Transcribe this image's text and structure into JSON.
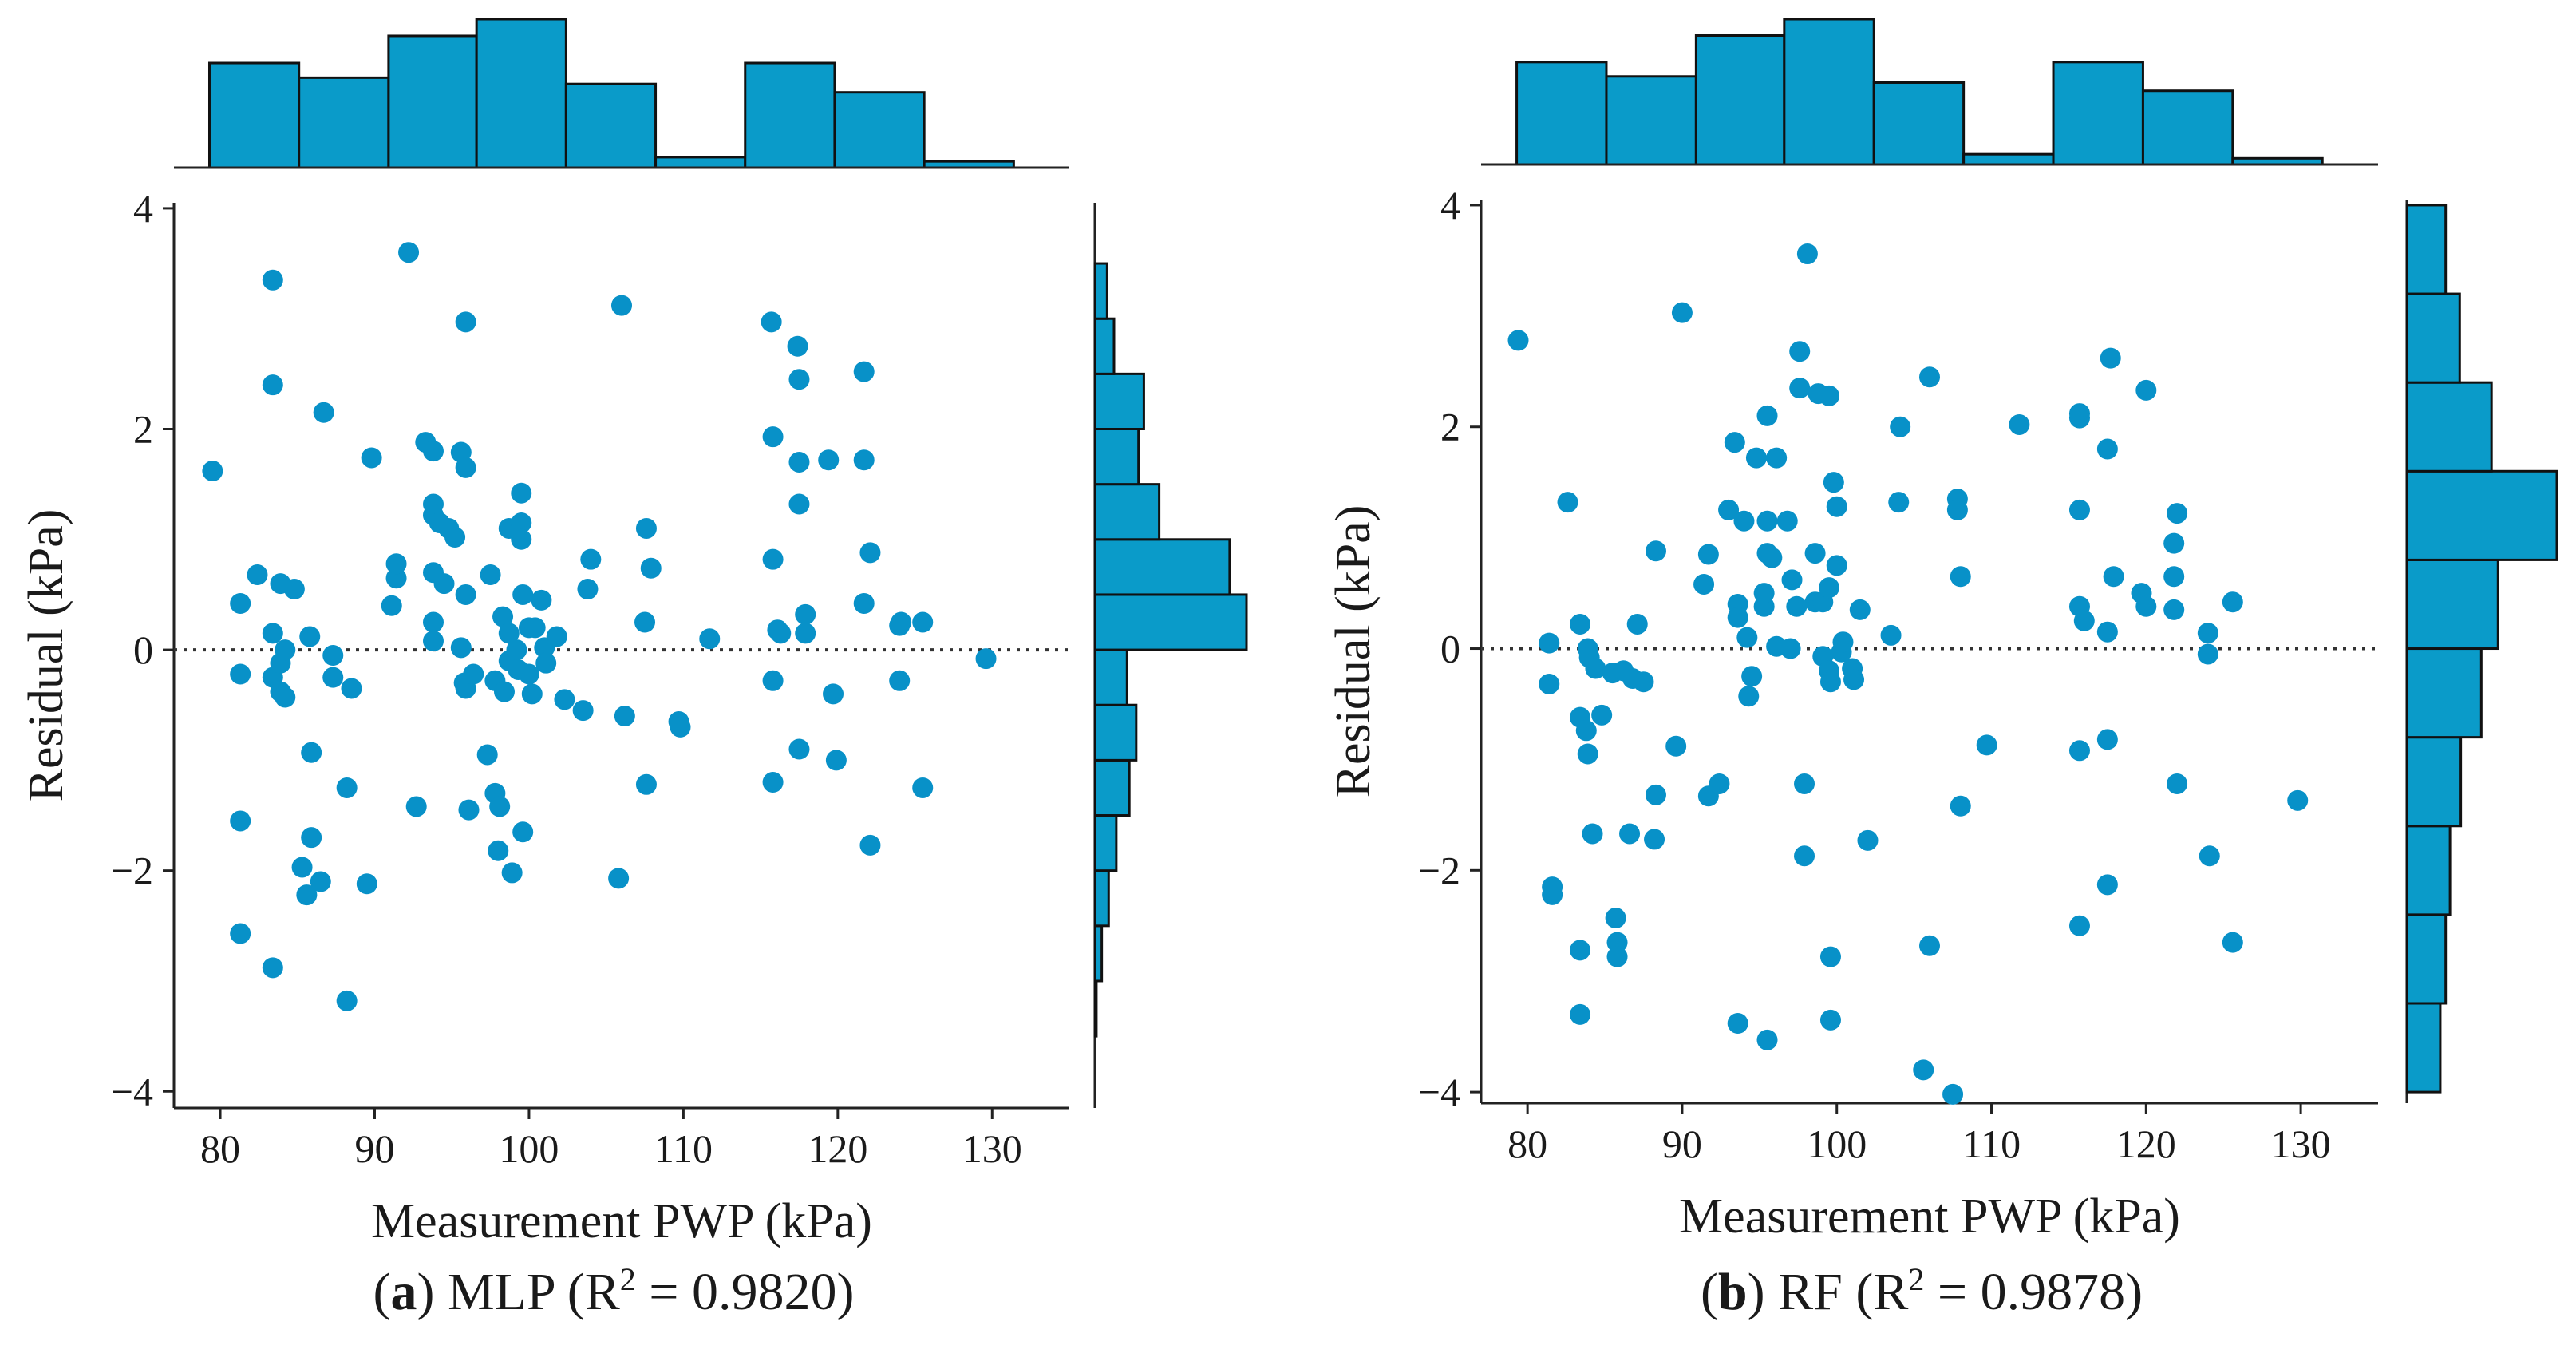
{
  "chart_data": [
    {
      "type": "scatter",
      "caption": {
        "letter": "a",
        "text": " MLP (R",
        "sup": "2",
        "tail": " = 0.9820)"
      },
      "xlabel": "Measurement PWP (kPa)",
      "ylabel": "Residual (kPa)",
      "xlim": [
        77,
        135
      ],
      "ylim": [
        -4.15,
        4.05
      ],
      "xticks": [
        "80",
        "90",
        "100",
        "110",
        "120",
        "130"
      ],
      "yticks": [
        "4",
        "2",
        "0",
        "−2",
        "−4"
      ],
      "xtick_values": [
        80,
        90,
        100,
        110,
        120,
        130
      ],
      "ytick_values": [
        4,
        2,
        0,
        -2,
        -4
      ],
      "reference_line_y": 0,
      "marker_color": "#0891c8",
      "hist_color": "#0a9bc9",
      "points": [
        [
          79.5,
          1.62
        ],
        [
          81.3,
          0.42
        ],
        [
          81.3,
          -0.22
        ],
        [
          81.3,
          -1.55
        ],
        [
          81.3,
          -2.57
        ],
        [
          82.4,
          0.68
        ],
        [
          83.4,
          3.35
        ],
        [
          83.4,
          2.4
        ],
        [
          83.4,
          0.15
        ],
        [
          83.4,
          -0.25
        ],
        [
          83.4,
          -2.88
        ],
        [
          83.9,
          0.6
        ],
        [
          83.9,
          -0.12
        ],
        [
          83.9,
          -0.38
        ],
        [
          84.2,
          -0.43
        ],
        [
          84.2,
          0.0
        ],
        [
          84.8,
          0.55
        ],
        [
          85.3,
          -1.97
        ],
        [
          85.6,
          -2.22
        ],
        [
          85.8,
          0.12
        ],
        [
          85.9,
          -0.93
        ],
        [
          85.9,
          -1.7
        ],
        [
          86.5,
          -2.1
        ],
        [
          86.7,
          2.15
        ],
        [
          87.3,
          -0.05
        ],
        [
          87.3,
          -0.25
        ],
        [
          88.2,
          -1.25
        ],
        [
          88.2,
          -3.18
        ],
        [
          88.5,
          -0.35
        ],
        [
          89.5,
          -2.12
        ],
        [
          89.8,
          1.74
        ],
        [
          91.1,
          0.4
        ],
        [
          91.4,
          0.65
        ],
        [
          91.4,
          0.78
        ],
        [
          92.2,
          3.6
        ],
        [
          92.7,
          -1.42
        ],
        [
          93.3,
          1.88
        ],
        [
          93.8,
          1.8
        ],
        [
          93.8,
          1.32
        ],
        [
          93.8,
          1.22
        ],
        [
          93.8,
          0.7
        ],
        [
          93.8,
          0.25
        ],
        [
          93.8,
          0.08
        ],
        [
          94.2,
          1.15
        ],
        [
          94.5,
          0.6
        ],
        [
          94.8,
          1.1
        ],
        [
          95.2,
          1.02
        ],
        [
          95.6,
          1.79
        ],
        [
          95.6,
          0.02
        ],
        [
          95.8,
          -0.3
        ],
        [
          95.9,
          2.97
        ],
        [
          95.9,
          1.65
        ],
        [
          95.9,
          0.5
        ],
        [
          95.9,
          -0.35
        ],
        [
          96.1,
          -1.45
        ],
        [
          96.4,
          -0.22
        ],
        [
          97.3,
          -0.95
        ],
        [
          97.5,
          0.68
        ],
        [
          97.8,
          -0.28
        ],
        [
          97.8,
          -1.3
        ],
        [
          98.0,
          -1.82
        ],
        [
          98.1,
          -1.42
        ],
        [
          98.3,
          0.3
        ],
        [
          98.4,
          -0.38
        ],
        [
          98.7,
          1.1
        ],
        [
          98.7,
          0.15
        ],
        [
          98.7,
          -0.1
        ],
        [
          98.9,
          -2.02
        ],
        [
          99.2,
          0.0
        ],
        [
          99.3,
          -0.18
        ],
        [
          99.5,
          1.42
        ],
        [
          99.5,
          1.15
        ],
        [
          99.5,
          1.0
        ],
        [
          99.6,
          0.5
        ],
        [
          99.6,
          -1.65
        ],
        [
          100.0,
          0.2
        ],
        [
          100.0,
          -0.22
        ],
        [
          100.2,
          -0.4
        ],
        [
          100.4,
          0.2
        ],
        [
          100.8,
          0.45
        ],
        [
          101.0,
          0.02
        ],
        [
          101.1,
          -0.12
        ],
        [
          101.8,
          0.12
        ],
        [
          102.3,
          -0.45
        ],
        [
          103.5,
          -0.55
        ],
        [
          103.8,
          0.55
        ],
        [
          104.0,
          0.82
        ],
        [
          105.8,
          -2.07
        ],
        [
          106.0,
          3.12
        ],
        [
          106.2,
          -0.6
        ],
        [
          107.5,
          0.25
        ],
        [
          107.6,
          1.1
        ],
        [
          107.6,
          -1.22
        ],
        [
          107.9,
          0.74
        ],
        [
          109.7,
          -0.65
        ],
        [
          109.8,
          -0.7
        ],
        [
          111.7,
          0.1
        ],
        [
          115.7,
          2.97
        ],
        [
          115.8,
          1.93
        ],
        [
          115.8,
          0.82
        ],
        [
          115.8,
          -0.28
        ],
        [
          115.8,
          -1.2
        ],
        [
          116.1,
          0.18
        ],
        [
          116.3,
          0.15
        ],
        [
          117.4,
          2.75
        ],
        [
          117.5,
          2.45
        ],
        [
          117.5,
          1.7
        ],
        [
          117.5,
          1.32
        ],
        [
          117.5,
          -0.9
        ],
        [
          117.9,
          0.32
        ],
        [
          117.9,
          0.15
        ],
        [
          119.4,
          1.72
        ],
        [
          119.7,
          -0.4
        ],
        [
          119.9,
          -1.0
        ],
        [
          121.7,
          2.52
        ],
        [
          121.7,
          1.72
        ],
        [
          121.7,
          0.42
        ],
        [
          122.1,
          0.88
        ],
        [
          122.1,
          -1.77
        ],
        [
          124.0,
          0.22
        ],
        [
          124.0,
          -0.28
        ],
        [
          124.1,
          0.25
        ],
        [
          125.5,
          0.25
        ],
        [
          125.5,
          -1.25
        ],
        [
          129.6,
          -0.08
        ]
      ],
      "x_hist": {
        "bins": [
          79.3,
          85.1,
          90.9,
          96.6,
          102.4,
          108.2,
          114.0,
          119.8,
          125.6,
          131.4
        ],
        "counts": [
          5,
          4.3,
          6.3,
          7.1,
          4,
          0.5,
          5,
          3.6,
          0.3
        ]
      },
      "y_hist": {
        "bins": [
          -3.5,
          -3.0,
          -2.5,
          -2.0,
          -1.5,
          -1.0,
          -0.5,
          0.0,
          0.5,
          1.0,
          1.5,
          2.0,
          2.5,
          3.0,
          3.5
        ],
        "counts": [
          0.2,
          0.9,
          1.8,
          2.8,
          4.5,
          5.4,
          4.2,
          19.8,
          17.6,
          8.4,
          5.7,
          6.4,
          2.5,
          1.6,
          1.7
        ]
      }
    },
    {
      "type": "scatter",
      "caption": {
        "letter": "b",
        "text": " RF (R",
        "sup": "2",
        "tail": " = 0.9878)"
      },
      "xlabel": "Measurement PWP (kPa)",
      "ylabel": "Residual (kPa)",
      "xlim": [
        77,
        135
      ],
      "ylim": [
        -4.1,
        4.05
      ],
      "xticks": [
        "80",
        "90",
        "100",
        "110",
        "120",
        "130"
      ],
      "yticks": [
        "4",
        "2",
        "0",
        "−2",
        "−4"
      ],
      "xtick_values": [
        80,
        90,
        100,
        110,
        120,
        130
      ],
      "ytick_values": [
        4,
        2,
        0,
        -2,
        -4
      ],
      "reference_line_y": 0,
      "marker_color": "#0891c8",
      "hist_color": "#0a9bc9",
      "points": [
        [
          79.4,
          2.78
        ],
        [
          81.4,
          0.05
        ],
        [
          81.4,
          -0.32
        ],
        [
          81.6,
          -2.15
        ],
        [
          81.6,
          -2.22
        ],
        [
          82.6,
          1.32
        ],
        [
          83.4,
          0.22
        ],
        [
          83.4,
          -0.62
        ],
        [
          83.4,
          -2.72
        ],
        [
          83.4,
          -3.3
        ],
        [
          83.8,
          -0.74
        ],
        [
          83.9,
          0.0
        ],
        [
          83.9,
          -0.95
        ],
        [
          84.0,
          -0.08
        ],
        [
          84.2,
          -1.67
        ],
        [
          84.4,
          -0.18
        ],
        [
          84.8,
          -0.6
        ],
        [
          85.5,
          -0.22
        ],
        [
          85.7,
          -2.43
        ],
        [
          85.8,
          -2.65
        ],
        [
          85.8,
          -2.78
        ],
        [
          86.2,
          -0.2
        ],
        [
          86.6,
          -1.67
        ],
        [
          86.8,
          -0.27
        ],
        [
          87.1,
          0.22
        ],
        [
          87.5,
          -0.3
        ],
        [
          88.2,
          -1.72
        ],
        [
          88.3,
          0.88
        ],
        [
          88.3,
          -1.32
        ],
        [
          89.6,
          -0.88
        ],
        [
          90.0,
          3.03
        ],
        [
          91.4,
          0.58
        ],
        [
          91.7,
          0.85
        ],
        [
          91.7,
          -1.33
        ],
        [
          92.4,
          -1.22
        ],
        [
          93.0,
          1.25
        ],
        [
          93.4,
          1.86
        ],
        [
          93.6,
          0.4
        ],
        [
          93.6,
          0.28
        ],
        [
          93.6,
          -3.38
        ],
        [
          94.0,
          1.15
        ],
        [
          94.2,
          0.1
        ],
        [
          94.3,
          -0.43
        ],
        [
          94.5,
          -0.25
        ],
        [
          94.8,
          1.72
        ],
        [
          95.3,
          0.38
        ],
        [
          95.3,
          0.5
        ],
        [
          95.5,
          2.1
        ],
        [
          95.5,
          1.15
        ],
        [
          95.5,
          0.86
        ],
        [
          95.5,
          -3.53
        ],
        [
          95.8,
          0.82
        ],
        [
          96.1,
          1.72
        ],
        [
          96.1,
          0.02
        ],
        [
          96.8,
          1.15
        ],
        [
          97.0,
          0.0
        ],
        [
          97.1,
          0.62
        ],
        [
          97.4,
          0.38
        ],
        [
          97.6,
          2.68
        ],
        [
          97.6,
          2.35
        ],
        [
          97.9,
          -1.22
        ],
        [
          97.9,
          -1.87
        ],
        [
          98.1,
          3.56
        ],
        [
          98.6,
          0.42
        ],
        [
          98.6,
          0.86
        ],
        [
          98.8,
          2.3
        ],
        [
          99.1,
          0.42
        ],
        [
          99.1,
          -0.07
        ],
        [
          99.5,
          2.28
        ],
        [
          99.5,
          0.55
        ],
        [
          99.5,
          -0.2
        ],
        [
          99.6,
          -0.3
        ],
        [
          99.6,
          -2.78
        ],
        [
          99.6,
          -3.35
        ],
        [
          99.8,
          1.5
        ],
        [
          100.0,
          1.28
        ],
        [
          100.0,
          0.75
        ],
        [
          100.3,
          -0.03
        ],
        [
          100.4,
          0.06
        ],
        [
          101.0,
          -0.18
        ],
        [
          101.1,
          -0.28
        ],
        [
          101.5,
          0.35
        ],
        [
          102.0,
          -1.73
        ],
        [
          103.5,
          0.12
        ],
        [
          104.0,
          1.32
        ],
        [
          104.1,
          2.0
        ],
        [
          105.6,
          -3.8
        ],
        [
          106.0,
          2.45
        ],
        [
          106.0,
          -2.68
        ],
        [
          107.5,
          -4.02
        ],
        [
          107.8,
          1.35
        ],
        [
          107.8,
          1.25
        ],
        [
          108.0,
          0.65
        ],
        [
          108.0,
          -1.42
        ],
        [
          109.7,
          -0.87
        ],
        [
          111.8,
          2.02
        ],
        [
          115.7,
          2.12
        ],
        [
          115.7,
          2.08
        ],
        [
          115.7,
          1.25
        ],
        [
          115.7,
          0.38
        ],
        [
          115.7,
          -0.92
        ],
        [
          115.7,
          -2.5
        ],
        [
          116.0,
          0.25
        ],
        [
          117.5,
          1.8
        ],
        [
          117.5,
          0.15
        ],
        [
          117.5,
          -0.82
        ],
        [
          117.5,
          -2.13
        ],
        [
          117.7,
          2.62
        ],
        [
          117.9,
          0.65
        ],
        [
          119.7,
          0.5
        ],
        [
          120.0,
          2.33
        ],
        [
          120.0,
          0.38
        ],
        [
          121.8,
          0.95
        ],
        [
          121.8,
          0.65
        ],
        [
          121.8,
          0.35
        ],
        [
          122.0,
          1.22
        ],
        [
          122.0,
          -1.22
        ],
        [
          124.0,
          0.14
        ],
        [
          124.0,
          -0.05
        ],
        [
          124.1,
          -1.87
        ],
        [
          125.6,
          0.42
        ],
        [
          125.6,
          -2.65
        ],
        [
          129.8,
          -1.37
        ]
      ],
      "x_hist": {
        "bins": [
          79.3,
          85.1,
          90.9,
          96.6,
          102.4,
          108.2,
          114.0,
          119.8,
          125.6,
          131.4
        ],
        "counts": [
          5,
          4.3,
          6.3,
          7.1,
          4,
          0.5,
          5,
          3.6,
          0.3
        ]
      },
      "y_hist": {
        "bins": [
          -4.0,
          -3.2,
          -2.4,
          -1.6,
          -0.8,
          0.0,
          0.8,
          1.6,
          2.4,
          3.2,
          4.0
        ],
        "counts": [
          6.2,
          7.2,
          8.0,
          10.0,
          13.8,
          16.9,
          27.8,
          15.7,
          9.8,
          7.2,
          0.8
        ]
      }
    }
  ]
}
